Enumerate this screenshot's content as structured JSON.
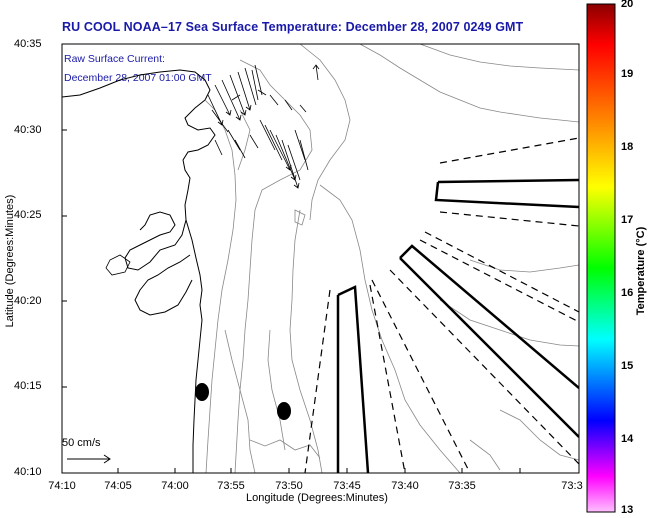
{
  "title": "RU COOL  NOAA–17  Sea Surface Temperature:  December 28, 2007 0249 GMT",
  "current_legend": {
    "line1": "Raw Surface Current:",
    "line2": "December 28, 2007 01:00 GMT"
  },
  "axes": {
    "y_label": "Latitude (Degrees:Minutes)",
    "x_label": "Longitude (Degrees:Minutes)",
    "y_ticks": [
      "40:35",
      "40:30",
      "40:25",
      "40:20",
      "40:15",
      "40:10"
    ],
    "x_ticks": [
      "74:10",
      "74:05",
      "74:00",
      "73:55",
      "73:50",
      "73:45",
      "73:40",
      "73:35",
      "73:3"
    ]
  },
  "colorbar": {
    "label": "Temperature (°C)",
    "ticks": [
      "20",
      "19",
      "18",
      "17",
      "16",
      "15",
      "14",
      "13"
    ],
    "colors": [
      "#8b0000",
      "#ff0000",
      "#ff8000",
      "#ffff00",
      "#00ff00",
      "#00ffff",
      "#0000ff",
      "#ff00ff",
      "#ffb0ff"
    ]
  },
  "scale_bar": {
    "label": "50 cm/s"
  },
  "colors": {
    "title": "#1a1aa8",
    "contour": "#888888"
  }
}
